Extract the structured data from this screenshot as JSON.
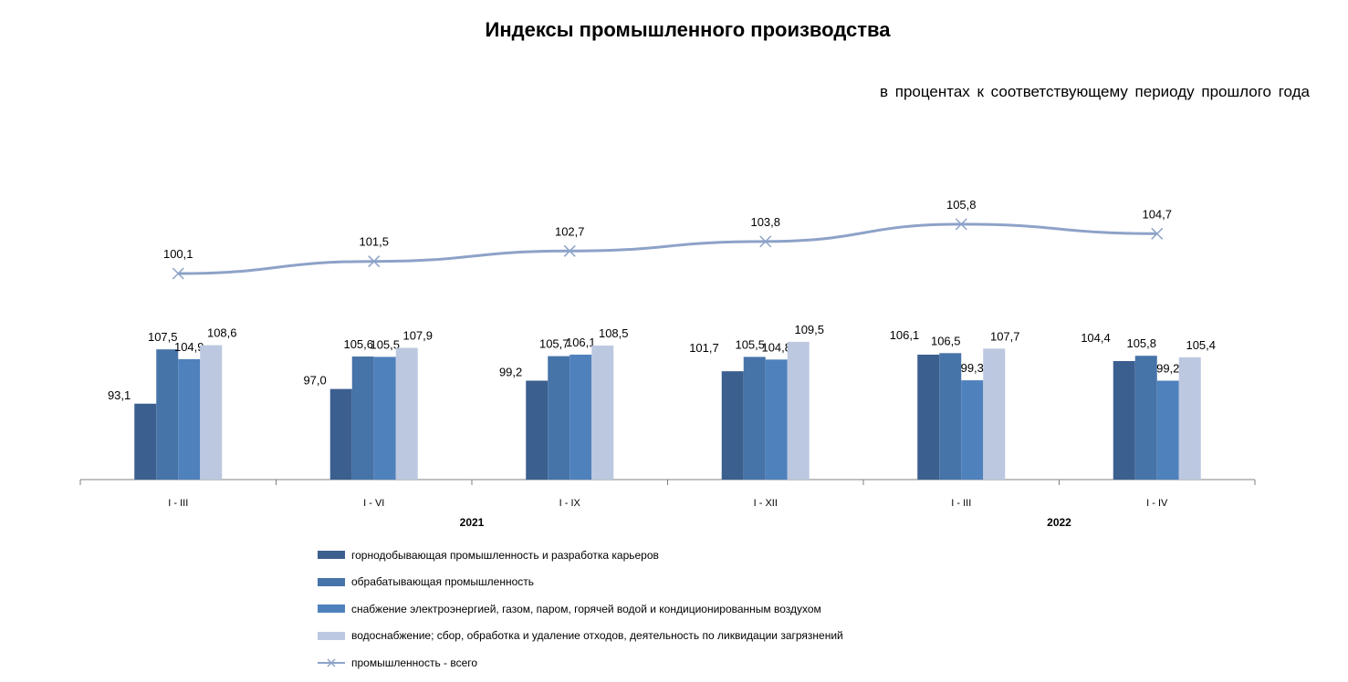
{
  "chart_data": {
    "type": "bar",
    "title": "Индексы промышленного производства",
    "subtitle": "в процентах  к соответствующему  периоду  прошлого  года",
    "categories": [
      "I - III",
      "I - VI",
      "I - IX",
      "I - XII",
      "I - III",
      "I - IV"
    ],
    "years": [
      {
        "label": "2021",
        "categories": [
          "I - III",
          "I - VI",
          "I - IX",
          "I - XII"
        ]
      },
      {
        "label": "2022",
        "categories": [
          "I - III",
          "I - IV"
        ]
      }
    ],
    "series": [
      {
        "name": "горнодобывающая промышленность и разработка карьеров",
        "type": "bar",
        "color": "#3b5f8f",
        "values": [
          93.1,
          97.0,
          99.2,
          101.7,
          106.1,
          104.4
        ],
        "labels": [
          "93,1",
          "97,0",
          "99,2",
          "101,7",
          "106,1",
          "104,4"
        ]
      },
      {
        "name": "обрабатывающая промышленность",
        "type": "bar",
        "color": "#4673a8",
        "values": [
          107.5,
          105.6,
          105.7,
          105.5,
          106.5,
          105.8
        ],
        "labels": [
          "107,5",
          "105,6",
          "105,7",
          "105,5",
          "106,5",
          "105,8"
        ]
      },
      {
        "name": "снабжение электроэнергией, газом, паром, горячей водой и  кондиционированным воздухом",
        "type": "bar",
        "color": "#4f81bd",
        "values": [
          104.9,
          105.5,
          106.1,
          104.8,
          99.3,
          99.2
        ],
        "labels": [
          "104,9",
          "105,5",
          "106,1",
          "104,8",
          "99,3",
          "99,2"
        ]
      },
      {
        "name": "водоснабжение; сбор, обработка и удаление отходов, деятельность по ликвидации загрязнений",
        "type": "bar",
        "color": "#bcc8e0",
        "values": [
          108.6,
          107.9,
          108.5,
          109.5,
          107.7,
          105.4
        ],
        "labels": [
          "108,6",
          "107,9",
          "108,5",
          "109,5",
          "107,7",
          "105,4"
        ]
      },
      {
        "name": "промышленность - всего",
        "type": "line",
        "color": "#8da2c8",
        "values": [
          100.1,
          101.5,
          102.7,
          103.8,
          105.8,
          104.7
        ],
        "labels": [
          "100,1",
          "101,5",
          "102,7",
          "103,8",
          "105,8",
          "104,7"
        ]
      }
    ],
    "legend_position": "bottom",
    "grid": false
  }
}
